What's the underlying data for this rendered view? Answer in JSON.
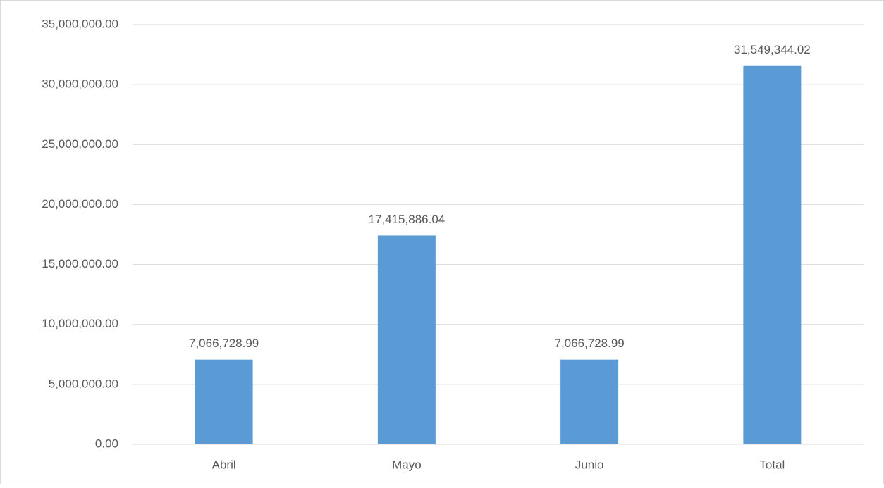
{
  "chart_data": {
    "type": "bar",
    "categories": [
      "Abril",
      "Mayo",
      "Junio",
      "Total"
    ],
    "values": [
      7066728.99,
      17415886.04,
      7066728.99,
      31549344.02
    ],
    "value_labels": [
      "7,066,728.99",
      "17,415,886.04",
      "7,066,728.99",
      "31,549,344.02"
    ],
    "color": "#5b9bd5",
    "ylim": [
      0,
      35000000
    ],
    "yticks": [
      {
        "value": 0,
        "label": "0.00"
      },
      {
        "value": 5000000,
        "label": "5,000,000.00"
      },
      {
        "value": 10000000,
        "label": "10,000,000.00"
      },
      {
        "value": 15000000,
        "label": "15,000,000.00"
      },
      {
        "value": 20000000,
        "label": "20,000,000.00"
      },
      {
        "value": 25000000,
        "label": "25,000,000.00"
      },
      {
        "value": 30000000,
        "label": "30,000,000.00"
      },
      {
        "value": 35000000,
        "label": "35,000,000.00"
      }
    ],
    "grid": true
  }
}
